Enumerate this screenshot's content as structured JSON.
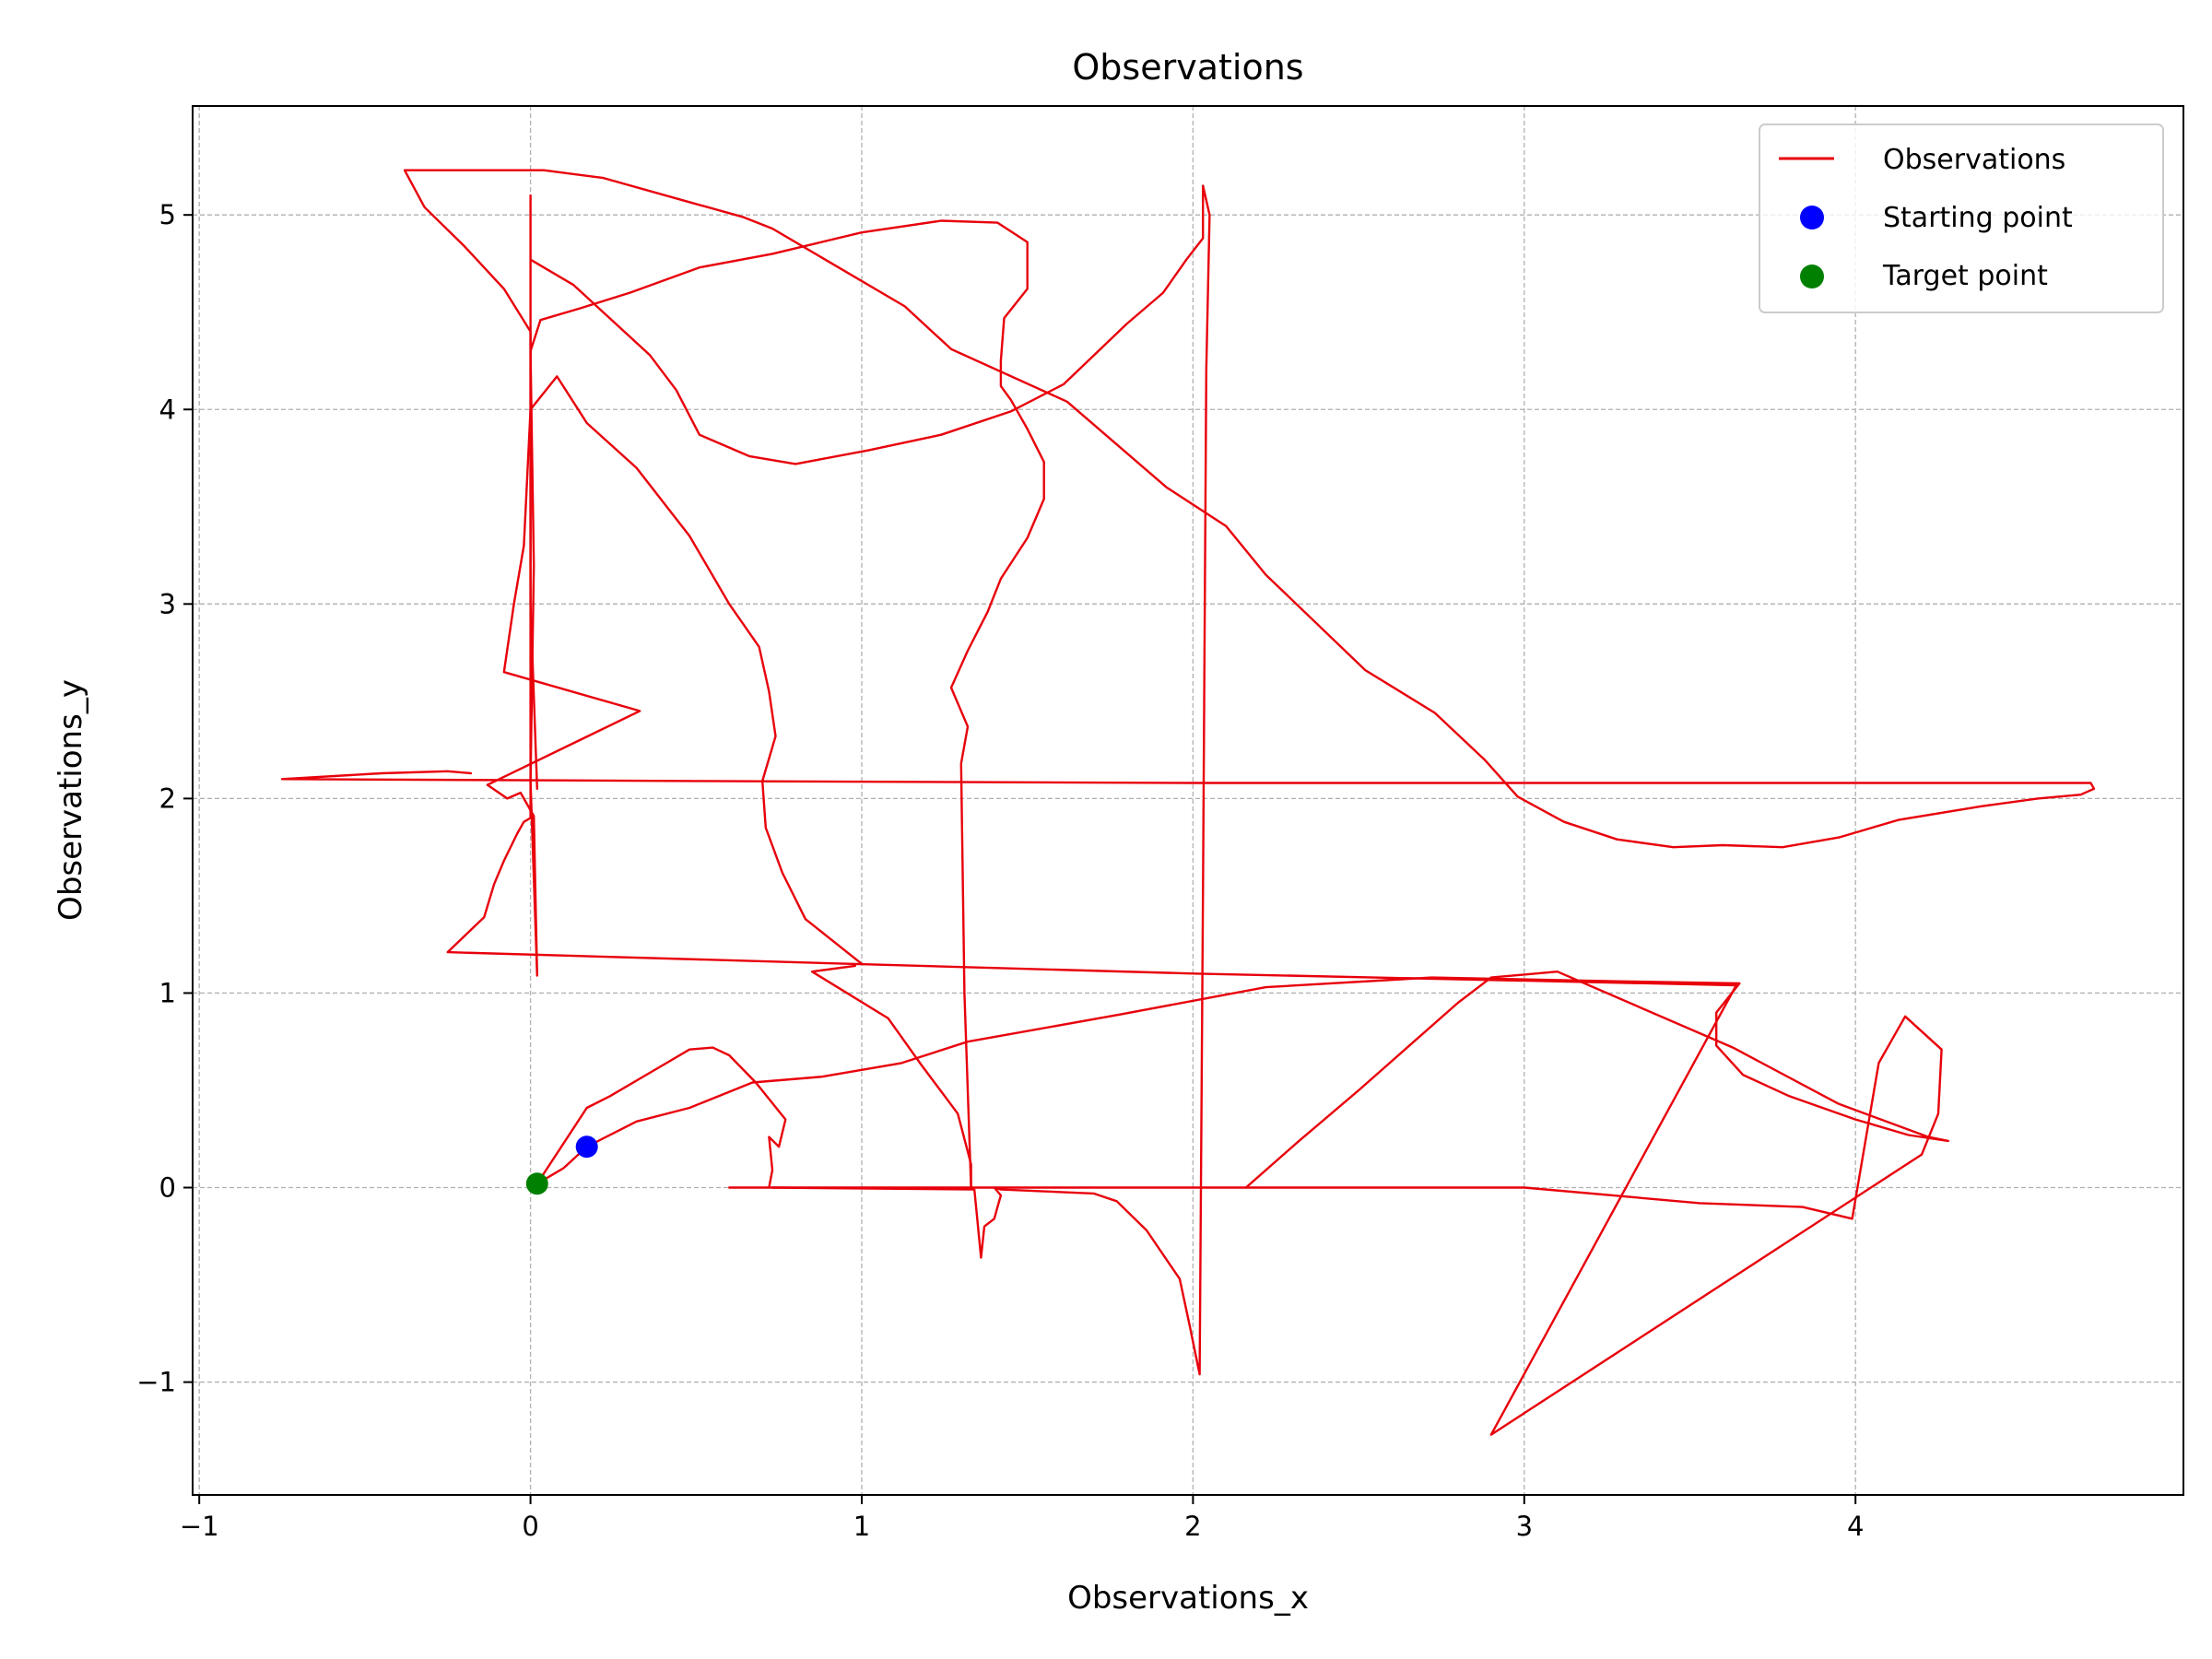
{
  "chart_data": {
    "type": "line",
    "title": "Observations",
    "xlabel": "Observations_x",
    "ylabel": "Observations_y",
    "xlim": [
      -1.02,
      4.99
    ],
    "ylim": [
      -1.58,
      5.56
    ],
    "xticks": [
      -1,
      0,
      1,
      2,
      3,
      4
    ],
    "yticks": [
      -1,
      0,
      1,
      2,
      3,
      4,
      5
    ],
    "xtick_labels": [
      "−1",
      "0",
      "1",
      "2",
      "3",
      "4"
    ],
    "ytick_labels": [
      "−1",
      "0",
      "1",
      "2",
      "3",
      "4",
      "5"
    ],
    "grid": true,
    "legend_position": "top-right",
    "legend": [
      "Observations",
      "Starting point",
      "Target point"
    ],
    "colors": {
      "observations": "#e8000b",
      "starting_point": "#0000ff",
      "target_point": "#008000",
      "grid": "#b0b0b0"
    },
    "series": [
      {
        "name": "Observations",
        "kind": "line",
        "points": [
          [
            0.17,
            0.21
          ],
          [
            0.32,
            0.34
          ],
          [
            0.48,
            0.41
          ],
          [
            0.67,
            0.54
          ],
          [
            0.88,
            0.57
          ],
          [
            1.12,
            0.64
          ],
          [
            1.32,
            0.75
          ],
          [
            1.78,
            0.89
          ],
          [
            2.22,
            1.03
          ],
          [
            2.72,
            1.08
          ],
          [
            3.3,
            1.06
          ],
          [
            3.65,
            1.05
          ],
          [
            3.58,
            0.9
          ],
          [
            3.58,
            0.73
          ],
          [
            3.66,
            0.58
          ],
          [
            3.8,
            0.47
          ],
          [
            4.0,
            0.35
          ],
          [
            4.16,
            0.27
          ],
          [
            4.28,
            0.24
          ],
          [
            4.22,
            0.26
          ],
          [
            3.95,
            0.43
          ],
          [
            3.63,
            0.72
          ],
          [
            3.1,
            1.11
          ],
          [
            2.9,
            1.08
          ],
          [
            2.8,
            0.95
          ],
          [
            2.5,
            0.5
          ],
          [
            2.32,
            0.24
          ],
          [
            2.16,
            0.0
          ],
          [
            1.8,
            0.0
          ],
          [
            0.6,
            0.0
          ],
          [
            0.72,
            0.0
          ],
          [
            0.73,
            0.09
          ],
          [
            0.72,
            0.26
          ],
          [
            0.75,
            0.21
          ],
          [
            0.77,
            0.35
          ],
          [
            0.68,
            0.54
          ],
          [
            0.6,
            0.68
          ],
          [
            0.55,
            0.72
          ],
          [
            0.48,
            0.71
          ],
          [
            0.36,
            0.59
          ],
          [
            0.24,
            0.47
          ],
          [
            0.17,
            0.41
          ],
          [
            0.02,
            0.02
          ]
        ]
      },
      {
        "name": "Observations",
        "kind": "line",
        "points": [
          [
            0.02,
            0.02
          ],
          [
            0.1,
            0.1
          ],
          [
            0.17,
            0.21
          ]
        ]
      },
      {
        "name": "Observations",
        "kind": "line",
        "points": [
          [
            0.73,
            0.0
          ],
          [
            1.34,
            -0.01
          ],
          [
            1.36,
            -0.36
          ],
          [
            1.37,
            -0.2
          ],
          [
            1.4,
            -0.16
          ],
          [
            1.41,
            -0.1
          ],
          [
            1.42,
            -0.04
          ],
          [
            1.4,
            0.0
          ],
          [
            1.42,
            -0.01
          ],
          [
            1.7,
            -0.03
          ],
          [
            1.77,
            -0.07
          ],
          [
            1.86,
            -0.22
          ],
          [
            1.96,
            -0.47
          ],
          [
            1.99,
            -0.71
          ],
          [
            2.02,
            -0.96
          ],
          [
            2.03,
            1.5
          ],
          [
            2.04,
            4.2
          ],
          [
            2.05,
            5.0
          ],
          [
            2.03,
            5.15
          ],
          [
            2.03,
            4.88
          ],
          [
            1.98,
            4.77
          ],
          [
            1.91,
            4.6
          ],
          [
            1.8,
            4.44
          ],
          [
            1.61,
            4.13
          ],
          [
            1.45,
            3.99
          ],
          [
            1.24,
            3.87
          ],
          [
            1.02,
            3.79
          ],
          [
            0.8,
            3.72
          ],
          [
            0.66,
            3.76
          ],
          [
            0.51,
            3.87
          ],
          [
            0.44,
            4.1
          ],
          [
            0.36,
            4.28
          ],
          [
            0.13,
            4.64
          ],
          [
            0.0,
            4.77
          ],
          [
            0.0,
            5.1
          ],
          [
            0.0,
            1.9
          ],
          [
            -0.02,
            1.88
          ],
          [
            -0.04,
            1.82
          ],
          [
            -0.08,
            1.68
          ],
          [
            -0.11,
            1.56
          ],
          [
            -0.14,
            1.39
          ],
          [
            -0.25,
            1.21
          ],
          [
            0.97,
            1.15
          ],
          [
            2.0,
            1.1
          ],
          [
            3.64,
            1.04
          ]
        ]
      },
      {
        "name": "Observations",
        "kind": "line",
        "points": [
          [
            3.64,
            1.04
          ],
          [
            2.9,
            -1.27
          ],
          [
            4.2,
            0.17
          ],
          [
            4.25,
            0.38
          ],
          [
            4.26,
            0.71
          ],
          [
            4.15,
            0.88
          ],
          [
            4.07,
            0.64
          ],
          [
            3.99,
            -0.16
          ],
          [
            3.84,
            -0.1
          ],
          [
            3.53,
            -0.08
          ],
          [
            3.0,
            0.0
          ],
          [
            2.16,
            0.0
          ]
        ]
      },
      {
        "name": "Observations",
        "kind": "line",
        "points": [
          [
            0.98,
            1.14
          ],
          [
            0.85,
            1.11
          ],
          [
            1.08,
            0.87
          ],
          [
            1.18,
            0.63
          ],
          [
            1.29,
            0.38
          ],
          [
            1.33,
            0.12
          ],
          [
            1.33,
            0.0
          ]
        ]
      },
      {
        "name": "Observations",
        "kind": "line",
        "points": [
          [
            1.33,
            0.0
          ],
          [
            1.31,
            1.0
          ],
          [
            1.3,
            2.18
          ],
          [
            1.32,
            2.37
          ],
          [
            1.27,
            2.57
          ],
          [
            1.32,
            2.76
          ],
          [
            1.38,
            2.96
          ],
          [
            1.42,
            3.13
          ],
          [
            1.5,
            3.34
          ],
          [
            1.55,
            3.54
          ],
          [
            1.55,
            3.73
          ],
          [
            1.5,
            3.9
          ],
          [
            1.45,
            4.05
          ],
          [
            1.42,
            4.12
          ],
          [
            1.42,
            4.25
          ],
          [
            1.43,
            4.47
          ],
          [
            1.5,
            4.62
          ],
          [
            1.5,
            4.86
          ],
          [
            1.41,
            4.96
          ],
          [
            1.24,
            4.97
          ],
          [
            1.0,
            4.91
          ],
          [
            0.73,
            4.8
          ],
          [
            0.51,
            4.73
          ],
          [
            0.3,
            4.6
          ],
          [
            0.15,
            4.52
          ],
          [
            0.03,
            4.46
          ],
          [
            0.0,
            4.3
          ],
          [
            0.01,
            3.2
          ],
          [
            0.0,
            2.09
          ],
          [
            0.02,
            1.09
          ],
          [
            0.01,
            1.91
          ],
          [
            -0.03,
            2.03
          ],
          [
            -0.07,
            2.0
          ],
          [
            -0.13,
            2.07
          ],
          [
            0.33,
            2.45
          ],
          [
            -0.08,
            2.65
          ],
          [
            -0.05,
            3.0
          ],
          [
            -0.02,
            3.3
          ],
          [
            0.0,
            4.0
          ],
          [
            0.08,
            4.17
          ],
          [
            0.17,
            3.93
          ],
          [
            0.32,
            3.7
          ],
          [
            0.48,
            3.35
          ],
          [
            0.6,
            3.0
          ],
          [
            0.69,
            2.78
          ],
          [
            0.72,
            2.55
          ],
          [
            0.74,
            2.32
          ],
          [
            0.7,
            2.09
          ],
          [
            0.71,
            1.85
          ],
          [
            0.76,
            1.62
          ],
          [
            0.83,
            1.38
          ],
          [
            1.0,
            1.15
          ]
        ]
      },
      {
        "name": "Observations",
        "kind": "line",
        "points": [
          [
            -0.18,
            2.13
          ],
          [
            -0.25,
            2.14
          ],
          [
            -0.45,
            2.13
          ],
          [
            -0.75,
            2.1
          ],
          [
            0.5,
            2.09
          ],
          [
            2.0,
            2.08
          ],
          [
            3.5,
            2.08
          ],
          [
            4.71,
            2.08
          ],
          [
            4.72,
            2.05
          ],
          [
            4.68,
            2.02
          ],
          [
            4.55,
            2.0
          ],
          [
            4.38,
            1.96
          ],
          [
            4.13,
            1.89
          ],
          [
            3.95,
            1.8
          ],
          [
            3.78,
            1.75
          ],
          [
            3.6,
            1.76
          ],
          [
            3.45,
            1.75
          ],
          [
            3.28,
            1.79
          ],
          [
            3.12,
            1.88
          ],
          [
            2.98,
            2.01
          ],
          [
            2.88,
            2.2
          ],
          [
            2.73,
            2.44
          ],
          [
            2.52,
            2.66
          ],
          [
            2.22,
            3.15
          ],
          [
            2.1,
            3.4
          ],
          [
            1.92,
            3.6
          ],
          [
            1.62,
            4.04
          ],
          [
            1.27,
            4.31
          ],
          [
            1.13,
            4.53
          ],
          [
            0.73,
            4.93
          ],
          [
            0.64,
            4.99
          ],
          [
            0.45,
            5.08
          ],
          [
            0.22,
            5.19
          ],
          [
            0.04,
            5.23
          ],
          [
            -0.38,
            5.23
          ],
          [
            -0.32,
            5.04
          ],
          [
            -0.2,
            4.84
          ],
          [
            -0.08,
            4.62
          ],
          [
            0.0,
            4.4
          ],
          [
            0.0,
            3.0
          ],
          [
            0.02,
            2.05
          ]
        ]
      }
    ],
    "starting_point": {
      "name": "Starting point",
      "x": 0.17,
      "y": 0.21
    },
    "target_point": {
      "name": "Target point",
      "x": 0.02,
      "y": 0.02
    }
  }
}
